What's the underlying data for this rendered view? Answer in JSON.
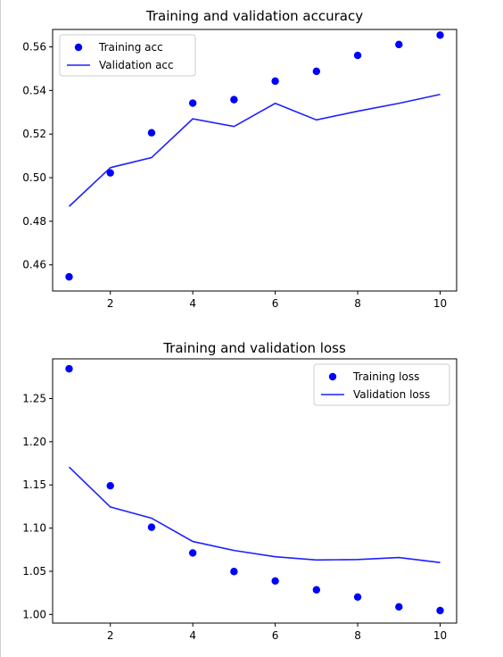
{
  "chart_data": [
    {
      "type": "scatter+line",
      "title": "Training and validation accuracy",
      "xlabel": "",
      "ylabel": "",
      "x": [
        1,
        2,
        3,
        4,
        5,
        6,
        7,
        8,
        9,
        10
      ],
      "xlim": [
        0.6,
        10.4
      ],
      "ylim": [
        0.448,
        0.568
      ],
      "xticks": [
        2,
        4,
        6,
        8,
        10
      ],
      "yticks": [
        0.46,
        0.48,
        0.5,
        0.52,
        0.54,
        0.56
      ],
      "ytick_labels": [
        "0.46",
        "0.48",
        "0.50",
        "0.52",
        "0.54",
        "0.56"
      ],
      "grid": false,
      "legend_position": "top-left",
      "series": [
        {
          "name": "Training acc",
          "style": "dots",
          "color": "#0000ff",
          "values": [
            0.4545,
            0.5022,
            0.5206,
            0.5342,
            0.5358,
            0.5443,
            0.5488,
            0.5561,
            0.5611,
            0.5654
          ]
        },
        {
          "name": "Validation acc",
          "style": "line",
          "color": "#1f1fff",
          "values": [
            0.4868,
            0.5046,
            0.5092,
            0.527,
            0.5235,
            0.5341,
            0.5265,
            0.5305,
            0.5341,
            0.5382
          ]
        }
      ]
    },
    {
      "type": "scatter+line",
      "title": "Training and validation loss",
      "xlabel": "",
      "ylabel": "",
      "x": [
        1,
        2,
        3,
        4,
        5,
        6,
        7,
        8,
        9,
        10
      ],
      "xlim": [
        0.6,
        10.4
      ],
      "ylim": [
        0.99,
        1.296
      ],
      "xticks": [
        2,
        4,
        6,
        8,
        10
      ],
      "yticks": [
        1.0,
        1.05,
        1.1,
        1.15,
        1.2,
        1.25
      ],
      "ytick_labels": [
        "1.00",
        "1.05",
        "1.10",
        "1.15",
        "1.20",
        "1.25"
      ],
      "grid": false,
      "legend_position": "top-right",
      "series": [
        {
          "name": "Training loss",
          "style": "dots",
          "color": "#0000ff",
          "values": [
            1.2845,
            1.149,
            1.101,
            1.0712,
            1.0497,
            1.0388,
            1.0285,
            1.0202,
            1.0088,
            1.0045
          ]
        },
        {
          "name": "Validation loss",
          "style": "line",
          "color": "#1f1fff",
          "values": [
            1.1707,
            1.1245,
            1.1115,
            1.0845,
            1.0741,
            1.0668,
            1.0631,
            1.0636,
            1.0659,
            1.0601
          ]
        }
      ]
    }
  ]
}
